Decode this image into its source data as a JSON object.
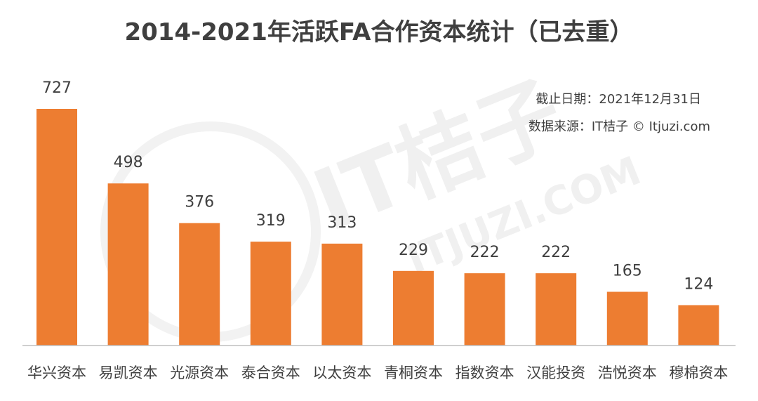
{
  "chart_data": {
    "type": "bar",
    "title": "2014-2021年活跃FA合作资本统计（已去重）",
    "categories": [
      "华兴资本",
      "易凯资本",
      "光源资本",
      "泰合资本",
      "以太资本",
      "青桐资本",
      "指数资本",
      "汉能投资",
      "浩悦资本",
      "穆棉资本"
    ],
    "values": [
      727,
      498,
      376,
      319,
      313,
      229,
      222,
      222,
      165,
      124
    ],
    "xlabel": "",
    "ylabel": "",
    "ylim": [
      0,
      727
    ],
    "grid": false,
    "legend": "none",
    "data_labels": true,
    "bar_color": "#ed7d31",
    "notes": [
      "截止日期：2021年12月31日",
      "数据来源：IT桔子 © Itjuzi.com"
    ]
  },
  "watermark": {
    "brand": "IT桔子",
    "url": "ITJUZI.COM"
  },
  "colors": {
    "bar": "#ed7d31",
    "text": "#3f3f3f",
    "axis": "#bfbfbf",
    "watermark": "#f0f0f0"
  }
}
